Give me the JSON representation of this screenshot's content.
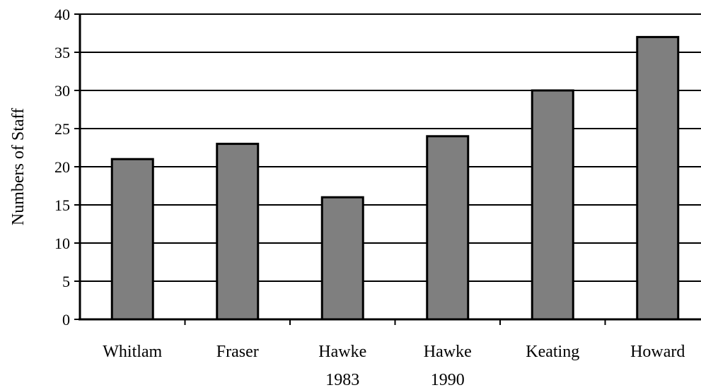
{
  "chart_data": {
    "type": "bar",
    "categories": [
      [
        "Whitlam"
      ],
      [
        "Fraser"
      ],
      [
        "Hawke",
        "1983"
      ],
      [
        "Hawke",
        "1990"
      ],
      [
        "Keating"
      ],
      [
        "Howard"
      ]
    ],
    "values": [
      21,
      23,
      16,
      24,
      30,
      37
    ],
    "ylabel": "Numbers of Staff",
    "xlabel": "",
    "title": "",
    "ylim": [
      0,
      40
    ],
    "yticks": [
      "0",
      "5",
      "10",
      "15",
      "20",
      "25",
      "30",
      "35",
      "40"
    ],
    "grid": true,
    "colors": {
      "bar": "#7f7f7f",
      "stroke": "#000000",
      "grid": "#000000"
    }
  }
}
